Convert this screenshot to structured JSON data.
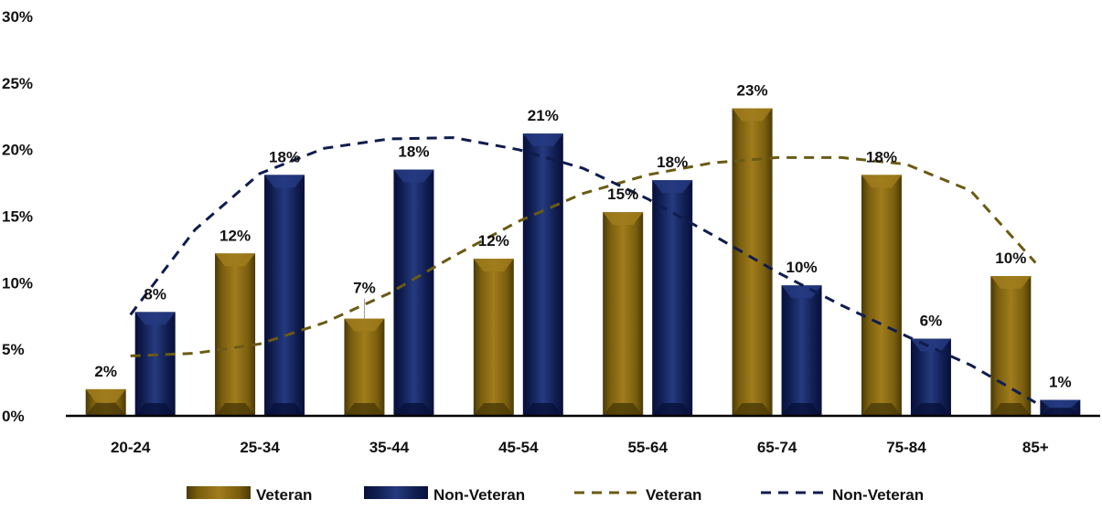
{
  "chart_data": {
    "type": "bar",
    "categories": [
      "20-24",
      "25-34",
      "35-44",
      "45-54",
      "55-64",
      "65-74",
      "75-84",
      "85+"
    ],
    "series": [
      {
        "name": "Veteran",
        "values": [
          2,
          12,
          7,
          12,
          15,
          23,
          18,
          10
        ],
        "labels": [
          "2%",
          "12%",
          "7%",
          "12%",
          "15%",
          "23%",
          "18%",
          "10%"
        ],
        "bar_values": [
          2.0,
          12.2,
          7.3,
          11.8,
          15.3,
          23.1,
          18.1,
          10.5
        ],
        "color": "#7a5e0e",
        "color_dark": "#4a3a08",
        "color_light": "#a07c1c"
      },
      {
        "name": "Non-Veteran",
        "values": [
          8,
          18,
          18,
          21,
          18,
          10,
          6,
          1
        ],
        "labels": [
          "8%",
          "18%",
          "18%",
          "21%",
          "18%",
          "10%",
          "6%",
          "1%"
        ],
        "bar_values": [
          7.8,
          18.1,
          18.5,
          21.2,
          17.7,
          9.8,
          5.8,
          1.2
        ],
        "color": "#0f1c4d",
        "color_dark": "#08103a",
        "color_light": "#253a80"
      }
    ],
    "trendlines": [
      {
        "name": "Veteran",
        "color": "#6b5a14",
        "points": [
          [
            0,
            4.5
          ],
          [
            0.5,
            4.7
          ],
          [
            1,
            5.4
          ],
          [
            1.5,
            7.0
          ],
          [
            2,
            9.2
          ],
          [
            2.5,
            12.0
          ],
          [
            3,
            14.6
          ],
          [
            3.5,
            16.7
          ],
          [
            4,
            18.1
          ],
          [
            4.5,
            19.0
          ],
          [
            5,
            19.4
          ],
          [
            5.5,
            19.4
          ],
          [
            6,
            18.9
          ],
          [
            6.5,
            16.9
          ],
          [
            7,
            11.5
          ]
        ]
      },
      {
        "name": "Non-Veteran",
        "color": "#0f1c4d",
        "points": [
          [
            0,
            7.6
          ],
          [
            0.5,
            14.0
          ],
          [
            1,
            18.2
          ],
          [
            1.5,
            20.1
          ],
          [
            2,
            20.8
          ],
          [
            2.5,
            20.9
          ],
          [
            3,
            20.0
          ],
          [
            3.5,
            18.6
          ],
          [
            4,
            16.3
          ],
          [
            4.5,
            13.6
          ],
          [
            5,
            10.8
          ],
          [
            5.5,
            8.3
          ],
          [
            6,
            6.0
          ],
          [
            6.5,
            3.8
          ],
          [
            7,
            1.0
          ]
        ]
      }
    ],
    "y_ticks": [
      "0%",
      "5%",
      "10%",
      "15%",
      "20%",
      "25%",
      "30%"
    ],
    "ylim": [
      0,
      30
    ],
    "grid": false,
    "legend_position": "bottom",
    "legend": [
      {
        "label": "Veteran",
        "kind": "bar",
        "color": "#7a5e0e"
      },
      {
        "label": "Non-Veteran",
        "kind": "bar",
        "color": "#0f1c4d"
      },
      {
        "label": "Veteran",
        "kind": "line",
        "color": "#6b5a14"
      },
      {
        "label": "Non-Veteran",
        "kind": "line",
        "color": "#0f1c4d"
      }
    ]
  }
}
